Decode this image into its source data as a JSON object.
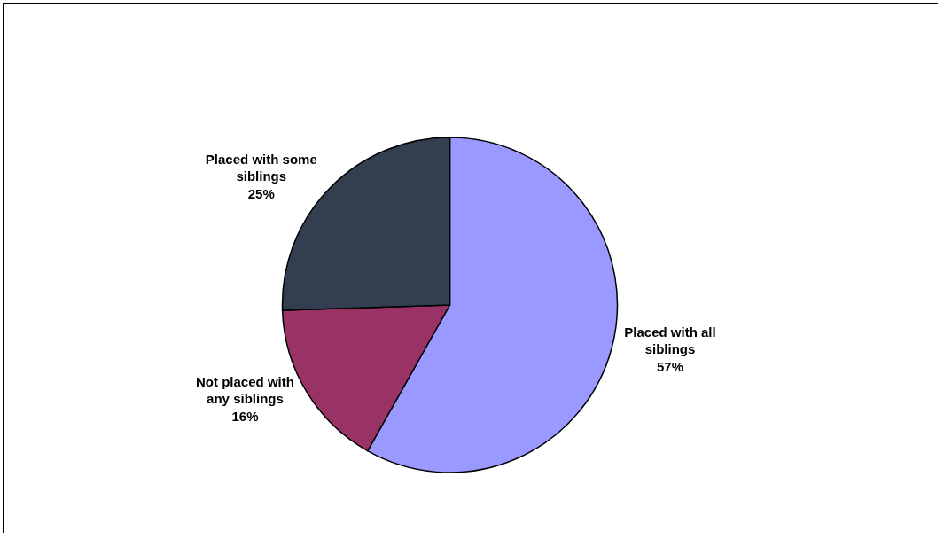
{
  "chart_data": {
    "type": "pie",
    "categories": [
      "Placed with all siblings",
      "Not placed with any siblings",
      "Placed with some siblings"
    ],
    "values": [
      57,
      16,
      25
    ],
    "value_labels": [
      "57%",
      "16%",
      "25%"
    ],
    "colors": [
      "#9999ff",
      "#993366",
      "#333f50"
    ],
    "legend": false
  }
}
